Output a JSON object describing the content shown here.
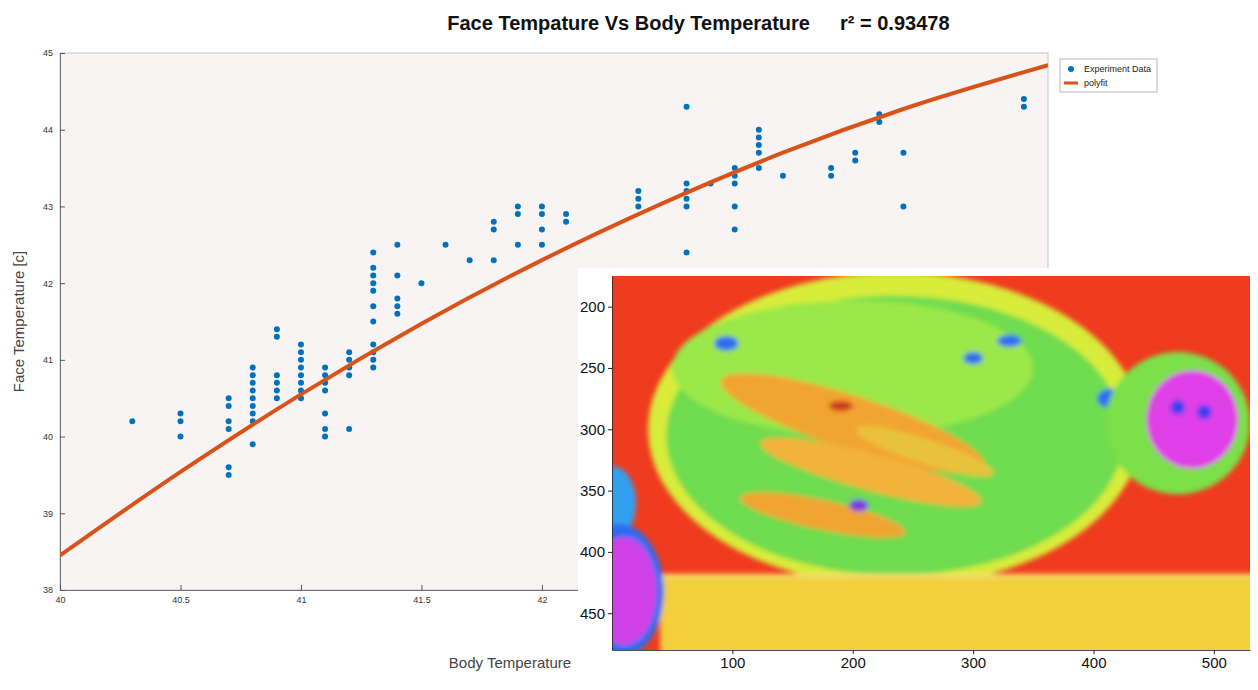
{
  "chart_data": [
    {
      "type": "scatter",
      "title": "Face Tempature Vs Body Temperature",
      "annotation": "r² = 0.93478",
      "x_label": "Body Temperature",
      "y_label": "Face Temperature [c]",
      "xlim": [
        40,
        44.1
      ],
      "ylim": [
        38,
        45
      ],
      "xticks": [
        40,
        40.5,
        41,
        41.5,
        42
      ],
      "yticks": [
        38,
        39,
        40,
        41,
        42,
        43,
        44,
        45
      ],
      "legend": "right",
      "series": [
        {
          "name": "Experiment Data",
          "type": "scatter",
          "color": "#0072bd",
          "marker": "circle",
          "x": [
            40.3,
            40.5,
            40.5,
            40.5,
            40.7,
            40.7,
            40.7,
            40.7,
            40.7,
            40.7,
            40.8,
            40.8,
            40.8,
            40.8,
            40.8,
            40.8,
            40.8,
            40.8,
            40.8,
            40.9,
            40.9,
            40.9,
            40.9,
            40.9,
            40.9,
            41.0,
            41.0,
            41.0,
            41.0,
            41.0,
            41.0,
            41.0,
            41.0,
            41.1,
            41.1,
            41.1,
            41.1,
            41.1,
            41.1,
            41.1,
            41.2,
            41.2,
            41.2,
            41.2,
            41.2,
            41.3,
            41.3,
            41.3,
            41.3,
            41.3,
            41.3,
            41.3,
            41.3,
            41.3,
            41.3,
            41.3,
            41.4,
            41.4,
            41.4,
            41.4,
            41.4,
            41.5,
            41.6,
            41.7,
            41.8,
            41.8,
            41.8,
            41.9,
            41.9,
            41.9,
            42.0,
            42.0,
            42.0,
            42.0,
            42.1,
            42.1,
            42.4,
            42.4,
            42.4,
            42.6,
            42.6,
            42.6,
            42.6,
            42.6,
            42.6,
            42.7,
            42.8,
            42.8,
            42.8,
            42.8,
            42.8,
            42.9,
            42.9,
            42.9,
            42.9,
            42.9,
            43.0,
            43.2,
            43.2,
            43.3,
            43.3,
            43.4,
            43.4,
            43.5,
            43.5,
            44.0,
            44.0
          ],
          "values": [
            40.2,
            40.3,
            40.2,
            40.0,
            40.5,
            40.4,
            40.2,
            40.1,
            39.6,
            39.5,
            40.9,
            40.8,
            40.7,
            40.6,
            40.5,
            40.4,
            40.3,
            40.2,
            39.9,
            41.4,
            41.3,
            40.8,
            40.7,
            40.6,
            40.5,
            41.2,
            41.1,
            41.0,
            40.9,
            40.8,
            40.7,
            40.6,
            40.5,
            40.9,
            40.8,
            40.7,
            40.6,
            40.3,
            40.1,
            40.0,
            41.1,
            41.0,
            40.9,
            40.8,
            40.1,
            42.4,
            42.2,
            42.1,
            42.0,
            41.9,
            41.7,
            41.5,
            41.2,
            41.1,
            41.0,
            40.9,
            42.5,
            42.1,
            41.8,
            41.7,
            41.6,
            42.0,
            42.5,
            42.3,
            42.8,
            42.7,
            42.3,
            43.0,
            42.9,
            42.5,
            43.0,
            42.9,
            42.7,
            42.5,
            42.9,
            42.8,
            43.2,
            43.1,
            43.0,
            44.3,
            43.3,
            43.2,
            43.1,
            43.0,
            42.4,
            43.3,
            43.5,
            43.4,
            43.3,
            43.0,
            42.7,
            44.0,
            43.9,
            43.8,
            43.7,
            43.5,
            43.4,
            43.5,
            43.4,
            43.7,
            43.6,
            44.2,
            44.1,
            43.7,
            43.0,
            44.4,
            44.3
          ]
        },
        {
          "name": "polyfit",
          "type": "line",
          "color": "#d95319",
          "line_style": "solid",
          "x": [
            40,
            40.5,
            41,
            41.5,
            42,
            42.5,
            43,
            43.5,
            44,
            44.1
          ],
          "values": [
            38.45,
            39.54,
            40.55,
            41.47,
            42.3,
            43.04,
            43.7,
            44.27,
            44.75,
            44.84
          ]
        }
      ]
    },
    {
      "type": "image",
      "xlim": [
        0,
        530
      ],
      "ylim": [
        175,
        480
      ],
      "xticks": [
        100,
        200,
        300,
        400,
        500
      ],
      "yticks": [
        200,
        250,
        300,
        350,
        400,
        450
      ]
    }
  ]
}
